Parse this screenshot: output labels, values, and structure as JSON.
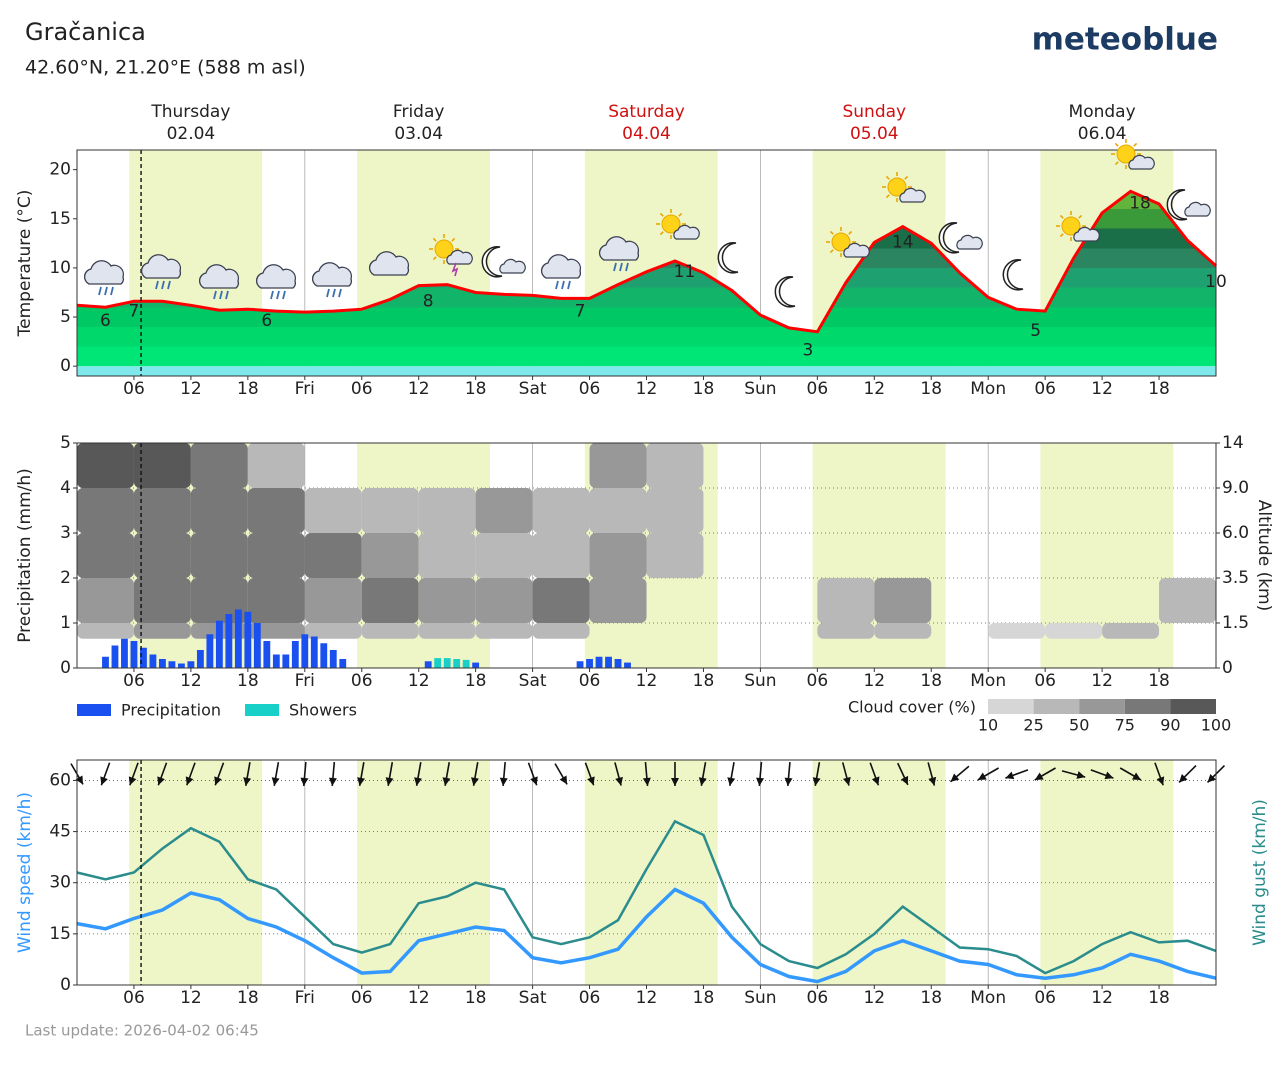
{
  "header": {
    "title": "Gračanica",
    "subtitle": "42.60°N, 21.20°E (588 m asl)",
    "logo": "meteoblue",
    "footer": "Last update: 2026-04-02 06:45"
  },
  "days": [
    {
      "name": "Thursday",
      "date": "02.04",
      "color": "#222222"
    },
    {
      "name": "Friday",
      "date": "03.04",
      "color": "#222222"
    },
    {
      "name": "Saturday",
      "date": "04.04",
      "color": "#d01010"
    },
    {
      "name": "Sunday",
      "date": "05.04",
      "color": "#d01010"
    },
    {
      "name": "Monday",
      "date": "06.04",
      "color": "#222222"
    }
  ],
  "xaxis": {
    "xlim": [
      0,
      120
    ],
    "now": 6.75,
    "xticks": [
      {
        "value": 6,
        "label": "06"
      },
      {
        "value": 12,
        "label": "12"
      },
      {
        "value": 18,
        "label": "18"
      },
      {
        "value": 24,
        "label": "Fri"
      },
      {
        "value": 30,
        "label": "06"
      },
      {
        "value": 36,
        "label": "12"
      },
      {
        "value": 42,
        "label": "18"
      },
      {
        "value": 48,
        "label": "Sat"
      },
      {
        "value": 54,
        "label": "06"
      },
      {
        "value": 60,
        "label": "12"
      },
      {
        "value": 66,
        "label": "18"
      },
      {
        "value": 72,
        "label": "Sun"
      },
      {
        "value": 78,
        "label": "06"
      },
      {
        "value": 84,
        "label": "12"
      },
      {
        "value": 90,
        "label": "18"
      },
      {
        "value": 96,
        "label": "Mon"
      },
      {
        "value": 102,
        "label": "06"
      },
      {
        "value": 108,
        "label": "12"
      },
      {
        "value": 114,
        "label": "18"
      }
    ],
    "daylight": [
      [
        5.5,
        19.5
      ],
      [
        29.5,
        43.5
      ],
      [
        53.5,
        67.5
      ],
      [
        77.5,
        91.5
      ],
      [
        101.5,
        115.5
      ]
    ]
  },
  "chart_data": [
    {
      "type": "area",
      "y_label": "Temperature (°C)",
      "color": "#ff0000",
      "ylim": [
        -1,
        22
      ],
      "yticks": [
        0,
        5,
        10,
        15,
        20
      ],
      "grid": false,
      "x": [
        0,
        3,
        6,
        9,
        12,
        15,
        18,
        21,
        24,
        27,
        30,
        33,
        36,
        39,
        42,
        45,
        48,
        51,
        54,
        57,
        60,
        63,
        66,
        69,
        72,
        75,
        78,
        81,
        84,
        87,
        90,
        93,
        96,
        99,
        102,
        105,
        108,
        111,
        114,
        117,
        120
      ],
      "values": [
        6.2,
        6.0,
        6.6,
        6.6,
        6.2,
        5.7,
        5.8,
        5.6,
        5.5,
        5.6,
        5.8,
        6.8,
        8.2,
        8.3,
        7.5,
        7.3,
        7.2,
        6.9,
        6.9,
        8.3,
        9.6,
        10.7,
        9.5,
        7.7,
        5.2,
        3.9,
        3.5,
        8.5,
        12.6,
        14.2,
        12.5,
        9.5,
        7.0,
        5.8,
        5.6,
        11.0,
        15.6,
        17.8,
        16.5,
        12.8,
        10.2
      ],
      "labels": [
        {
          "x": 3,
          "value": 6
        },
        {
          "x": 6,
          "value": 7
        },
        {
          "x": 20,
          "value": 6
        },
        {
          "x": 37,
          "value": 8
        },
        {
          "x": 53,
          "value": 7
        },
        {
          "x": 64,
          "value": 11
        },
        {
          "x": 77,
          "value": 3
        },
        {
          "x": 87,
          "value": 14
        },
        {
          "x": 101,
          "value": 5
        },
        {
          "x": 112,
          "value": 18
        },
        {
          "x": 120,
          "value": 10
        }
      ]
    },
    {
      "type": "bar",
      "y_label": "Precipitation (mm/h)",
      "y2_label": "Altitude (km)",
      "ylim": [
        0,
        5
      ],
      "yticks": [
        0,
        1,
        2,
        3,
        4,
        5
      ],
      "grid": true,
      "y2lim": [
        0,
        14
      ],
      "y2ticks": [
        0,
        1.5,
        3.5,
        {
          "value": 6,
          "label": "6.0"
        },
        {
          "value": 9,
          "label": "9.0"
        },
        14
      ],
      "series": [
        {
          "name": "Precipitation",
          "color": "#1a50f0",
          "x": [
            3,
            4,
            5,
            6,
            7,
            8,
            9,
            10,
            11,
            12,
            13,
            14,
            15,
            16,
            17,
            18,
            19,
            20,
            21,
            22,
            23,
            24,
            25,
            26,
            27,
            28,
            37,
            42,
            53,
            54,
            55,
            56,
            57,
            58
          ],
          "values": [
            0.25,
            0.5,
            0.65,
            0.6,
            0.45,
            0.3,
            0.2,
            0.15,
            0.1,
            0.15,
            0.4,
            0.75,
            1.05,
            1.2,
            1.3,
            1.25,
            1.0,
            0.6,
            0.3,
            0.3,
            0.6,
            0.75,
            0.7,
            0.55,
            0.4,
            0.2,
            0.15,
            0.12,
            0.15,
            0.2,
            0.25,
            0.25,
            0.2,
            0.12
          ]
        },
        {
          "name": "Showers",
          "color": "#18d0c8",
          "x": [
            38,
            39,
            40,
            41
          ],
          "values": [
            0.22,
            0.22,
            0.2,
            0.18
          ]
        }
      ],
      "cloud_cover": {
        "label": "Cloud cover (%)",
        "levels": [
          10,
          25,
          50,
          75,
          90,
          100
        ],
        "colors": [
          "#d6d6d6",
          "#b8b8b8",
          "#989898",
          "#787878",
          "#585858"
        ],
        "grid": [
          [
            25,
            50,
            50,
            50,
            25,
            25,
            25,
            25,
            25,
            0,
            0,
            0,
            0,
            25,
            25,
            0,
            10,
            10,
            25,
            0
          ],
          [
            50,
            75,
            75,
            75,
            50,
            75,
            50,
            50,
            75,
            50,
            0,
            0,
            0,
            25,
            50,
            0,
            0,
            0,
            0,
            25
          ],
          [
            75,
            75,
            75,
            75,
            75,
            50,
            25,
            25,
            25,
            50,
            25,
            0,
            0,
            0,
            0,
            0,
            0,
            0,
            0,
            0
          ],
          [
            75,
            75,
            75,
            75,
            25,
            25,
            25,
            50,
            25,
            25,
            25,
            0,
            0,
            0,
            0,
            0,
            0,
            0,
            0,
            0
          ],
          [
            90,
            90,
            75,
            25,
            0,
            0,
            0,
            0,
            0,
            50,
            25,
            0,
            0,
            0,
            0,
            0,
            0,
            0,
            0,
            0
          ]
        ]
      }
    },
    {
      "type": "line",
      "ylim": [
        0,
        66
      ],
      "yticks": [
        0,
        15,
        30,
        45,
        60
      ],
      "grid": true,
      "x": [
        0,
        3,
        6,
        9,
        12,
        15,
        18,
        21,
        24,
        27,
        30,
        33,
        36,
        39,
        42,
        45,
        48,
        51,
        54,
        57,
        60,
        63,
        66,
        69,
        72,
        75,
        78,
        81,
        84,
        87,
        90,
        93,
        96,
        99,
        102,
        105,
        108,
        111,
        114,
        117,
        120
      ],
      "series": [
        {
          "name": "Wind speed (km/h)",
          "color": "#3399ff",
          "values": [
            18,
            16.5,
            19.5,
            22,
            27,
            25,
            19.5,
            17,
            13,
            8,
            3.5,
            4,
            13,
            15,
            17,
            16,
            8,
            6.5,
            8,
            10.5,
            20,
            28,
            24,
            14,
            6,
            2.5,
            1,
            4,
            10,
            13,
            10,
            7,
            6,
            3,
            2,
            3,
            5,
            9,
            7,
            4,
            2
          ]
        },
        {
          "name": "Wind gust (km/h)",
          "color": "#2a8c8c",
          "values": [
            33,
            31,
            33,
            40,
            46,
            42,
            31,
            28,
            20,
            12,
            9.5,
            12,
            24,
            26,
            30,
            28,
            14,
            12,
            14,
            19,
            34,
            48,
            44,
            23,
            12,
            7,
            5,
            9,
            15,
            23,
            17,
            11,
            10.5,
            8.5,
            3.5,
            7,
            12,
            15.5,
            12.5,
            13,
            10
          ]
        }
      ],
      "wind_direction": [
        330,
        20,
        20,
        20,
        20,
        20,
        10,
        10,
        5,
        5,
        10,
        10,
        10,
        10,
        10,
        5,
        340,
        330,
        340,
        345,
        355,
        0,
        10,
        10,
        5,
        5,
        10,
        345,
        340,
        335,
        345,
        50,
        60,
        70,
        60,
        285,
        290,
        300,
        340,
        45,
        45
      ]
    }
  ]
}
